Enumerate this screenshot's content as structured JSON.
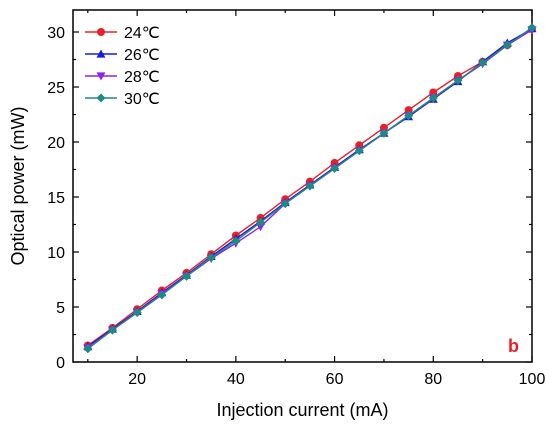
{
  "chart_data": {
    "type": "line",
    "xlabel": "Injection current (mA)",
    "ylabel": "Optical power (mW)",
    "xlim": [
      7,
      100
    ],
    "ylim": [
      0,
      32
    ],
    "xticks": [
      20,
      40,
      60,
      80,
      100
    ],
    "yticks": [
      0,
      5,
      10,
      15,
      20,
      25,
      30
    ],
    "panel_label": "b",
    "panel_label_color": "#e8202a",
    "grid": false,
    "legend_position": "top-left",
    "series": [
      {
        "name": "24℃",
        "color": "#e8202a",
        "marker": "circle",
        "x": [
          10,
          15,
          20,
          25,
          30,
          35,
          40,
          45,
          50,
          55,
          60,
          65,
          70,
          75,
          80,
          85,
          90,
          95,
          100
        ],
        "y": [
          1.5,
          3.1,
          4.8,
          6.5,
          8.1,
          9.8,
          11.5,
          13.1,
          14.8,
          16.4,
          18.1,
          19.7,
          21.3,
          22.9,
          24.5,
          26.0,
          27.3,
          28.8,
          30.3
        ]
      },
      {
        "name": "26℃",
        "color": "#1a1adc",
        "marker": "triangle-up",
        "x": [
          10,
          15,
          20,
          25,
          30,
          35,
          40,
          45,
          50,
          55,
          60,
          65,
          70,
          75,
          80,
          85,
          90,
          95,
          100
        ],
        "y": [
          1.4,
          3.0,
          4.6,
          6.3,
          7.9,
          9.6,
          11.2,
          12.8,
          14.5,
          16.1,
          17.7,
          19.3,
          20.8,
          22.3,
          23.9,
          25.5,
          27.3,
          29.0,
          30.3
        ]
      },
      {
        "name": "28℃",
        "color": "#8b22f0",
        "marker": "triangle-down",
        "x": [
          10,
          15,
          20,
          25,
          30,
          35,
          40,
          45,
          50,
          55,
          60,
          65,
          70,
          75,
          80,
          85,
          90,
          95,
          100
        ],
        "y": [
          1.3,
          2.9,
          4.5,
          6.2,
          7.8,
          9.4,
          10.8,
          12.3,
          14.4,
          16.0,
          17.6,
          19.2,
          20.8,
          22.4,
          24.0,
          25.6,
          27.1,
          28.8,
          30.2
        ]
      },
      {
        "name": "30℃",
        "color": "#1e8a85",
        "marker": "diamond",
        "x": [
          10,
          15,
          20,
          25,
          30,
          35,
          40,
          45,
          50,
          55,
          60,
          65,
          70,
          75,
          80,
          85,
          90,
          95,
          100
        ],
        "y": [
          1.2,
          2.9,
          4.5,
          6.1,
          7.8,
          9.5,
          11.0,
          12.7,
          14.4,
          16.0,
          17.6,
          19.2,
          20.8,
          22.4,
          24.0,
          25.6,
          27.2,
          28.8,
          30.4
        ]
      }
    ]
  }
}
